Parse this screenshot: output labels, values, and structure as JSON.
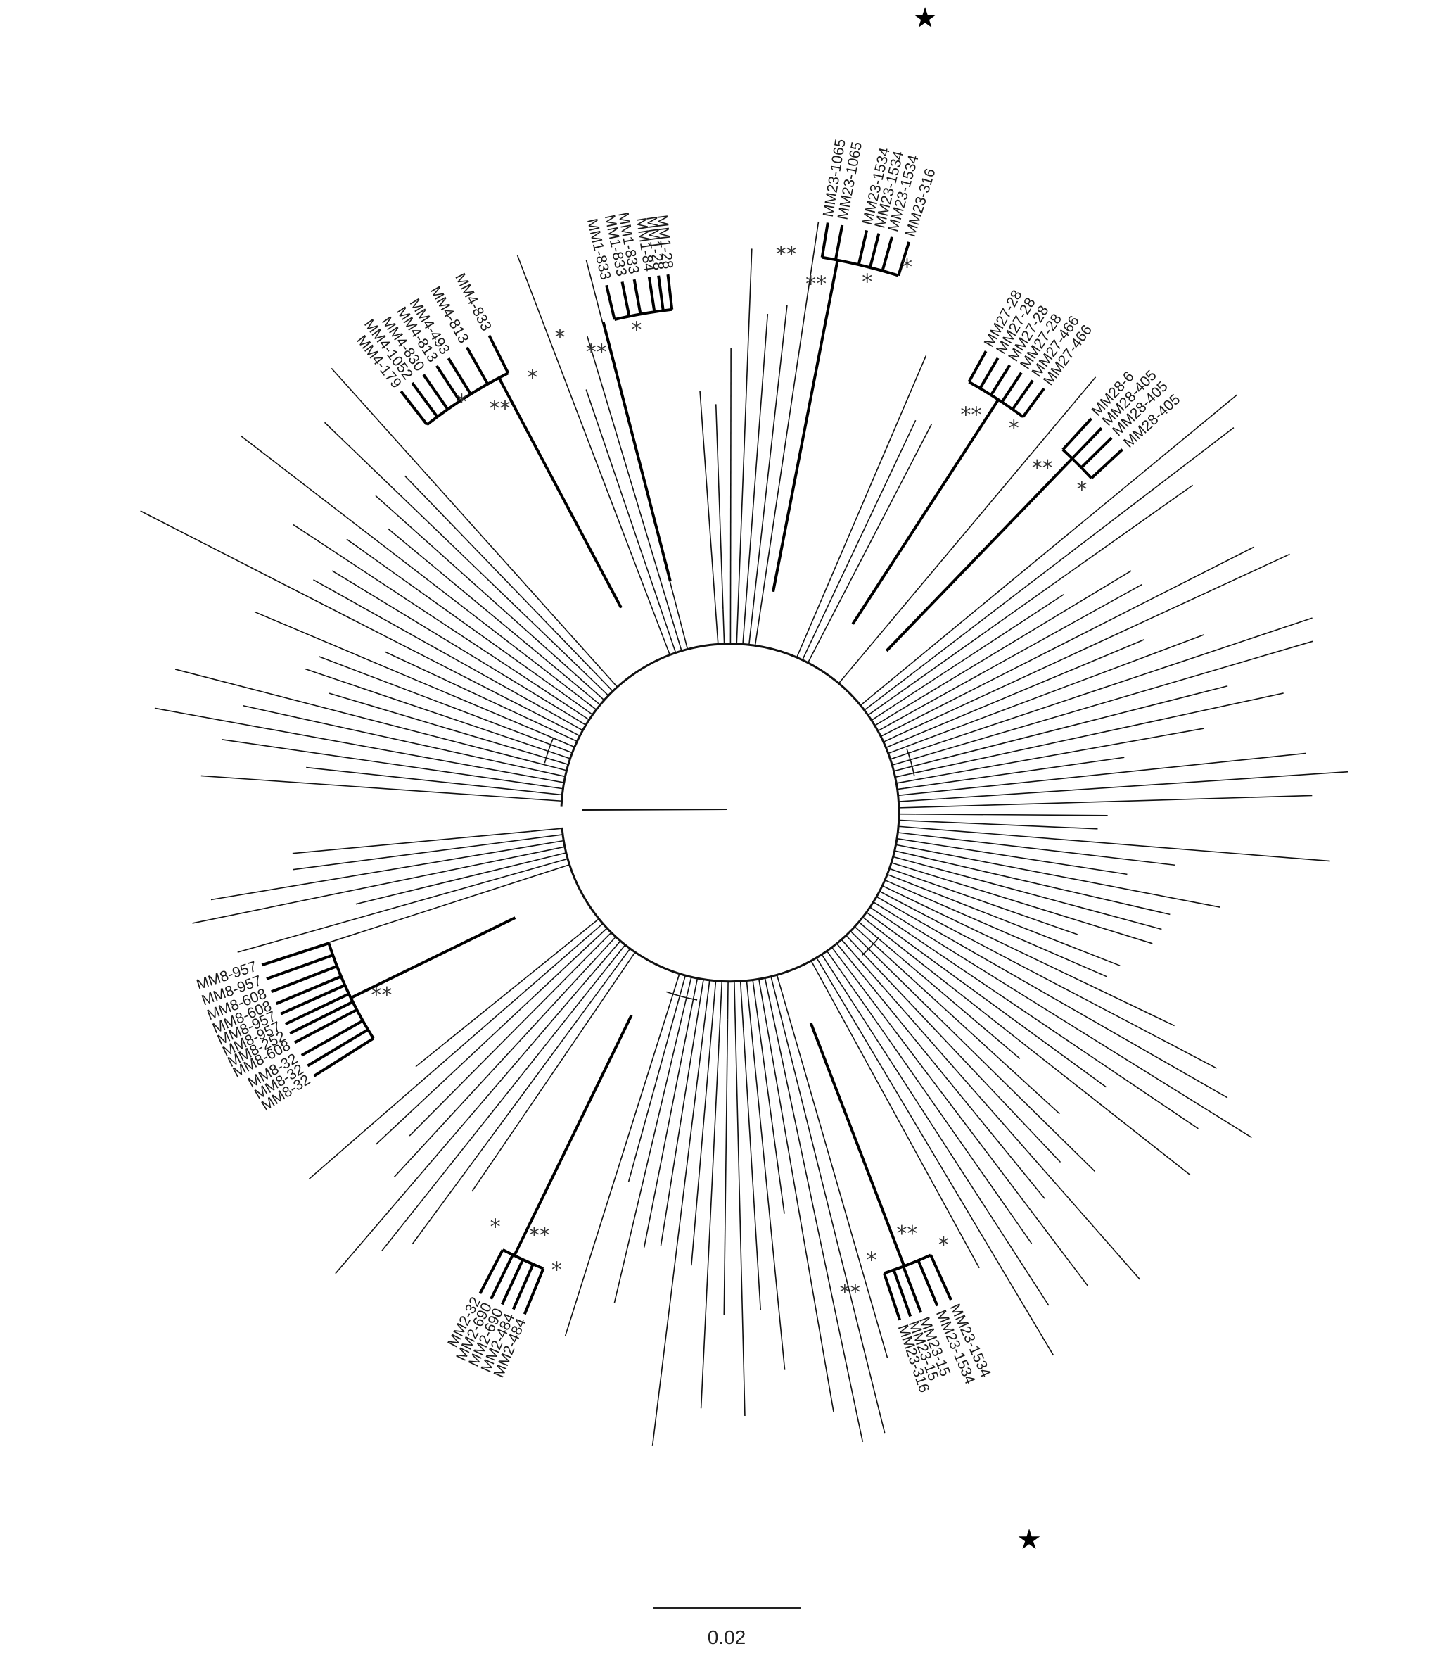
{
  "figure": {
    "type": "circular phylogenetic tree",
    "scale_bar": {
      "label": "0.02",
      "value": 0.02
    },
    "highlight_marker": "★",
    "support_marker": "*"
  },
  "clades": [
    {
      "name": "MM1",
      "labels": [
        "MM1-833",
        "MM1-833",
        "MM1-833",
        "MM1-84",
        "MM1-28",
        "MM1-28"
      ],
      "support": [
        "**",
        "*",
        "*"
      ]
    },
    {
      "name": "MM4",
      "labels": [
        "MM4-179",
        "MM4-1052",
        "MM4-830",
        "MM4-813",
        "MM4-493",
        "MM4-813",
        "MM4-833"
      ],
      "support": [
        "**",
        "*",
        "*"
      ]
    },
    {
      "name": "MM23-top",
      "labels": [
        "MM23-1065",
        "MM23-1065",
        "MM23-1534",
        "MM23-1534",
        "MM23-1534",
        "MM23-316"
      ],
      "support": [
        "**",
        "*",
        "**",
        "*"
      ],
      "starred": true
    },
    {
      "name": "MM27",
      "labels": [
        "MM27-28",
        "MM27-28",
        "MM27-28",
        "MM27-28",
        "MM27-466",
        "MM27-466"
      ],
      "support": [
        "**",
        "*"
      ]
    },
    {
      "name": "MM28",
      "labels": [
        "MM28-6",
        "MM28-405",
        "MM28-405",
        "MM28-405"
      ],
      "support": [
        "**",
        "*"
      ]
    },
    {
      "name": "MM8",
      "labels": [
        "MM8-957",
        "MM8-957",
        "MM8-608",
        "MM8-608",
        "MM8-957",
        "MM8-957",
        "MM8-252",
        "MM8-608",
        "MM8-32",
        "MM8-32",
        "MM8-32"
      ],
      "support": [
        "**"
      ]
    },
    {
      "name": "MM2",
      "labels": [
        "MM2-32",
        "MM2-690",
        "MM2-690",
        "MM2-484",
        "MM2-484"
      ],
      "support": [
        "**",
        "*",
        "*"
      ]
    },
    {
      "name": "MM23-bottom",
      "labels": [
        "MM23-316",
        "MM23-15",
        "MM23-15",
        "MM23-1534",
        "MM23-1534"
      ],
      "support": [
        "**",
        "*",
        "*",
        "**"
      ],
      "starred": true
    }
  ]
}
